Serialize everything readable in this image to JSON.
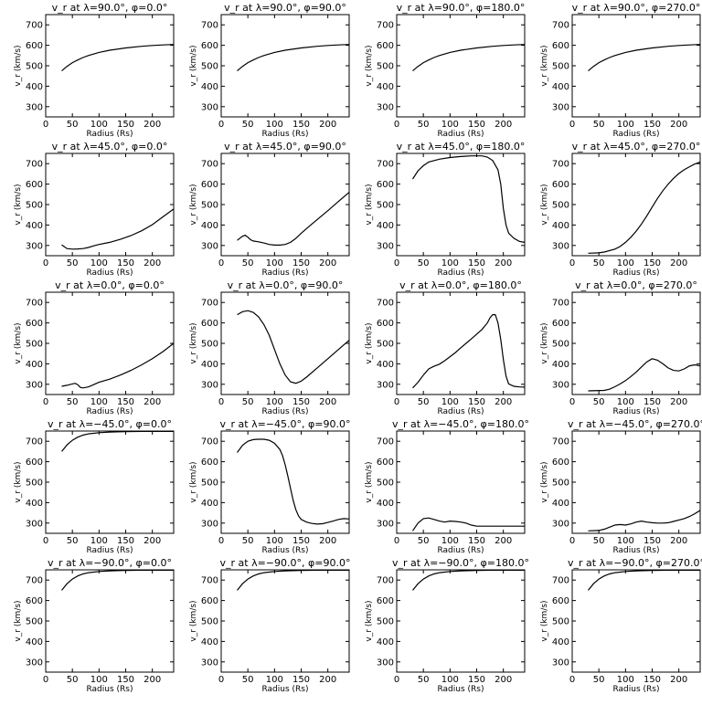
{
  "figure": {
    "panels": [
      {
        "title": "v_r at λ=90.0°, φ=0.0°"
      },
      {
        "title": "v_r at λ=90.0°, φ=90.0°"
      },
      {
        "title": "v_r at λ=90.0°, φ=180.0°"
      },
      {
        "title": "v_r at λ=90.0°, φ=270.0°"
      },
      {
        "title": "v_r at λ=45.0°, φ=0.0°"
      },
      {
        "title": "v_r at λ=45.0°, φ=90.0°"
      },
      {
        "title": "v_r at λ=45.0°, φ=180.0°"
      },
      {
        "title": "v_r at λ=45.0°, φ=270.0°"
      },
      {
        "title": "v_r at λ=0.0°, φ=0.0°"
      },
      {
        "title": "v_r at λ=0.0°, φ=90.0°"
      },
      {
        "title": "v_r at λ=0.0°, φ=180.0°"
      },
      {
        "title": "v_r at λ=0.0°, φ=270.0°"
      },
      {
        "title": "v_r at λ=−45.0°, φ=0.0°"
      },
      {
        "title": "v_r at λ=−45.0°, φ=90.0°"
      },
      {
        "title": "v_r at λ=−45.0°, φ=180.0°"
      },
      {
        "title": "v_r at λ=−45.0°, φ=270.0°"
      },
      {
        "title": "v_r at λ=−90.0°, φ=0.0°"
      },
      {
        "title": "v_r at λ=−90.0°, φ=90.0°"
      },
      {
        "title": "v_r at λ=−90.0°, φ=180.0°"
      },
      {
        "title": "v_r at λ=−90.0°, φ=270.0°"
      }
    ]
  },
  "chart_data": [
    {
      "type": "line",
      "title": "v_r at λ=90.0°, φ=0.0°",
      "xlabel": "Radius (Rs)",
      "ylabel": "v_r (km/s)",
      "xlim": [
        0,
        240
      ],
      "ylim": [
        250,
        750
      ],
      "xticks": [
        0,
        50,
        100,
        150,
        200
      ],
      "yticks": [
        300,
        400,
        500,
        600,
        700
      ],
      "x": [
        30,
        40,
        50,
        60,
        70,
        80,
        100,
        120,
        150,
        180,
        200,
        220,
        240
      ],
      "y": [
        475,
        497,
        515,
        528,
        540,
        550,
        565,
        576,
        587,
        595,
        599,
        602,
        604
      ]
    },
    {
      "type": "line",
      "title": "v_r at λ=90.0°, φ=90.0°",
      "xlabel": "Radius (Rs)",
      "ylabel": "v_r (km/s)",
      "xlim": [
        0,
        240
      ],
      "ylim": [
        250,
        750
      ],
      "xticks": [
        0,
        50,
        100,
        150,
        200
      ],
      "yticks": [
        300,
        400,
        500,
        600,
        700
      ],
      "x": [
        30,
        40,
        50,
        60,
        70,
        80,
        100,
        120,
        150,
        180,
        200,
        220,
        240
      ],
      "y": [
        475,
        497,
        515,
        528,
        540,
        550,
        565,
        576,
        587,
        595,
        599,
        602,
        604
      ]
    },
    {
      "type": "line",
      "title": "v_r at λ=90.0°, φ=180.0°",
      "xlabel": "Radius (Rs)",
      "ylabel": "v_r (km/s)",
      "xlim": [
        0,
        240
      ],
      "ylim": [
        250,
        750
      ],
      "xticks": [
        0,
        50,
        100,
        150,
        200
      ],
      "yticks": [
        300,
        400,
        500,
        600,
        700
      ],
      "x": [
        30,
        40,
        50,
        60,
        70,
        80,
        100,
        120,
        150,
        180,
        200,
        220,
        240
      ],
      "y": [
        475,
        497,
        515,
        528,
        540,
        550,
        565,
        576,
        587,
        595,
        599,
        602,
        604
      ]
    },
    {
      "type": "line",
      "title": "v_r at λ=90.0°, φ=270.0°",
      "xlabel": "Radius (Rs)",
      "ylabel": "v_r (km/s)",
      "xlim": [
        0,
        240
      ],
      "ylim": [
        250,
        750
      ],
      "xticks": [
        0,
        50,
        100,
        150,
        200
      ],
      "yticks": [
        300,
        400,
        500,
        600,
        700
      ],
      "x": [
        30,
        40,
        50,
        60,
        70,
        80,
        100,
        120,
        150,
        180,
        200,
        220,
        240
      ],
      "y": [
        475,
        497,
        515,
        528,
        540,
        550,
        565,
        576,
        587,
        595,
        599,
        602,
        604
      ]
    },
    {
      "type": "line",
      "title": "v_r at λ=45.0°, φ=0.0°",
      "xlabel": "Radius (Rs)",
      "ylabel": "v_r (km/s)",
      "xlim": [
        0,
        240
      ],
      "ylim": [
        250,
        750
      ],
      "xticks": [
        0,
        50,
        100,
        150,
        200
      ],
      "yticks": [
        300,
        400,
        500,
        600,
        700
      ],
      "x": [
        30,
        40,
        50,
        60,
        70,
        80,
        90,
        100,
        120,
        140,
        160,
        180,
        200,
        220,
        240
      ],
      "y": [
        303,
        285,
        282,
        283,
        285,
        290,
        298,
        305,
        315,
        330,
        348,
        372,
        402,
        440,
        478
      ]
    },
    {
      "type": "line",
      "title": "v_r at λ=45.0°, φ=90.0°",
      "xlabel": "Radius (Rs)",
      "ylabel": "v_r (km/s)",
      "xlim": [
        0,
        240
      ],
      "ylim": [
        250,
        750
      ],
      "xticks": [
        0,
        50,
        100,
        150,
        200
      ],
      "yticks": [
        300,
        400,
        500,
        600,
        700
      ],
      "x": [
        30,
        40,
        45,
        50,
        55,
        60,
        70,
        80,
        90,
        100,
        110,
        120,
        130,
        140,
        150,
        170,
        200,
        220,
        240
      ],
      "y": [
        325,
        345,
        350,
        340,
        328,
        322,
        318,
        312,
        305,
        302,
        302,
        305,
        315,
        335,
        360,
        405,
        470,
        515,
        560
      ]
    },
    {
      "type": "line",
      "title": "v_r at λ=45.0°, φ=180.0°",
      "xlabel": "Radius (Rs)",
      "ylabel": "v_r (km/s)",
      "xlim": [
        0,
        240
      ],
      "ylim": [
        250,
        750
      ],
      "xticks": [
        0,
        50,
        100,
        150,
        200
      ],
      "yticks": [
        300,
        400,
        500,
        600,
        700
      ],
      "x": [
        30,
        40,
        50,
        60,
        80,
        100,
        120,
        140,
        160,
        170,
        180,
        190,
        195,
        200,
        205,
        210,
        220,
        230,
        240
      ],
      "y": [
        625,
        665,
        690,
        708,
        722,
        730,
        735,
        738,
        738,
        732,
        715,
        670,
        600,
        480,
        400,
        360,
        335,
        320,
        315
      ]
    },
    {
      "type": "line",
      "title": "v_r at λ=45.0°, φ=270.0°",
      "xlabel": "Radius (Rs)",
      "ylabel": "v_r (km/s)",
      "xlim": [
        0,
        240
      ],
      "ylim": [
        250,
        750
      ],
      "xticks": [
        0,
        50,
        100,
        150,
        200
      ],
      "yticks": [
        300,
        400,
        500,
        600,
        700
      ],
      "x": [
        30,
        50,
        60,
        80,
        90,
        100,
        110,
        120,
        130,
        140,
        150,
        160,
        170,
        180,
        190,
        200,
        210,
        220,
        230,
        240
      ],
      "y": [
        262,
        264,
        268,
        282,
        295,
        315,
        340,
        370,
        405,
        445,
        488,
        530,
        568,
        600,
        628,
        652,
        670,
        685,
        698,
        708
      ]
    },
    {
      "type": "line",
      "title": "v_r at λ=0.0°, φ=0.0°",
      "xlabel": "Radius (Rs)",
      "ylabel": "v_r (km/s)",
      "xlim": [
        0,
        240
      ],
      "ylim": [
        250,
        750
      ],
      "xticks": [
        0,
        50,
        100,
        150,
        200
      ],
      "yticks": [
        300,
        400,
        500,
        600,
        700
      ],
      "x": [
        30,
        40,
        50,
        55,
        60,
        65,
        70,
        80,
        90,
        100,
        120,
        140,
        160,
        180,
        200,
        220,
        240
      ],
      "y": [
        290,
        295,
        302,
        305,
        298,
        285,
        282,
        287,
        298,
        310,
        325,
        345,
        368,
        395,
        425,
        460,
        500
      ]
    },
    {
      "type": "line",
      "title": "v_r at λ=0.0°, φ=90.0°",
      "xlabel": "Radius (Rs)",
      "ylabel": "v_r (km/s)",
      "xlim": [
        0,
        240
      ],
      "ylim": [
        250,
        750
      ],
      "xticks": [
        0,
        50,
        100,
        150,
        200
      ],
      "yticks": [
        300,
        400,
        500,
        600,
        700
      ],
      "x": [
        30,
        40,
        50,
        60,
        70,
        80,
        90,
        100,
        110,
        120,
        130,
        140,
        150,
        160,
        180,
        200,
        220,
        240
      ],
      "y": [
        640,
        655,
        660,
        652,
        630,
        592,
        540,
        470,
        400,
        345,
        312,
        305,
        315,
        335,
        380,
        425,
        470,
        515
      ]
    },
    {
      "type": "line",
      "title": "v_r at λ=0.0°, φ=180.0°",
      "xlabel": "Radius (Rs)",
      "ylabel": "v_r (km/s)",
      "xlim": [
        0,
        240
      ],
      "ylim": [
        250,
        750
      ],
      "xticks": [
        0,
        50,
        100,
        150,
        200
      ],
      "yticks": [
        300,
        400,
        500,
        600,
        700
      ],
      "x": [
        30,
        40,
        50,
        60,
        70,
        80,
        90,
        100,
        110,
        120,
        130,
        140,
        150,
        160,
        170,
        175,
        180,
        185,
        190,
        195,
        200,
        205,
        210,
        220,
        230,
        240
      ],
      "y": [
        282,
        310,
        345,
        375,
        388,
        398,
        415,
        435,
        455,
        478,
        500,
        522,
        545,
        568,
        600,
        625,
        640,
        640,
        600,
        520,
        420,
        340,
        302,
        290,
        287,
        286
      ]
    },
    {
      "type": "line",
      "title": "v_r at λ=0.0°, φ=270.0°",
      "xlabel": "Radius (Rs)",
      "ylabel": "v_r (km/s)",
      "xlim": [
        0,
        240
      ],
      "ylim": [
        250,
        750
      ],
      "xticks": [
        0,
        50,
        100,
        150,
        200
      ],
      "yticks": [
        300,
        400,
        500,
        600,
        700
      ],
      "x": [
        30,
        60,
        70,
        80,
        90,
        100,
        110,
        120,
        130,
        140,
        150,
        160,
        170,
        180,
        190,
        200,
        210,
        220,
        230,
        240
      ],
      "y": [
        268,
        270,
        276,
        288,
        302,
        318,
        338,
        360,
        385,
        410,
        425,
        418,
        400,
        380,
        368,
        365,
        375,
        390,
        395,
        390
      ]
    },
    {
      "type": "line",
      "title": "v_r at λ=−45.0°, φ=0.0°",
      "xlabel": "Radius (Rs)",
      "ylabel": "v_r (km/s)",
      "xlim": [
        0,
        240
      ],
      "ylim": [
        250,
        750
      ],
      "xticks": [
        0,
        50,
        100,
        150,
        200
      ],
      "yticks": [
        300,
        400,
        500,
        600,
        700
      ],
      "x": [
        30,
        40,
        50,
        60,
        70,
        80,
        100,
        120,
        150,
        180,
        200,
        220,
        240
      ],
      "y": [
        650,
        682,
        705,
        720,
        730,
        736,
        742,
        745,
        747,
        748,
        748,
        748,
        748
      ]
    },
    {
      "type": "line",
      "title": "v_r at λ=−45.0°, φ=90.0°",
      "xlabel": "Radius (Rs)",
      "ylabel": "v_r (km/s)",
      "xlim": [
        0,
        240
      ],
      "ylim": [
        250,
        750
      ],
      "xticks": [
        0,
        50,
        100,
        150,
        200
      ],
      "yticks": [
        300,
        400,
        500,
        600,
        700
      ],
      "x": [
        30,
        40,
        50,
        60,
        70,
        80,
        90,
        100,
        110,
        115,
        120,
        125,
        130,
        135,
        140,
        145,
        150,
        160,
        170,
        180,
        190,
        200,
        210,
        220,
        230,
        240
      ],
      "y": [
        645,
        680,
        700,
        708,
        710,
        710,
        705,
        690,
        660,
        630,
        585,
        530,
        470,
        410,
        365,
        335,
        318,
        305,
        298,
        295,
        297,
        303,
        310,
        318,
        322,
        320
      ]
    },
    {
      "type": "line",
      "title": "v_r at λ=−45.0°, φ=180.0°",
      "xlabel": "Radius (Rs)",
      "ylabel": "v_r (km/s)",
      "xlim": [
        0,
        240
      ],
      "ylim": [
        250,
        750
      ],
      "xticks": [
        0,
        50,
        100,
        150,
        200
      ],
      "yticks": [
        300,
        400,
        500,
        600,
        700
      ],
      "x": [
        30,
        40,
        50,
        60,
        70,
        80,
        90,
        100,
        110,
        120,
        130,
        140,
        150,
        160,
        170,
        180,
        200,
        220,
        240
      ],
      "y": [
        262,
        300,
        322,
        325,
        318,
        310,
        305,
        310,
        308,
        305,
        300,
        290,
        285,
        285,
        285,
        285,
        285,
        285,
        285
      ]
    },
    {
      "type": "line",
      "title": "v_r at λ=−45.0°, φ=270.0°",
      "xlabel": "Radius (Rs)",
      "ylabel": "v_r (km/s)",
      "xlim": [
        0,
        240
      ],
      "ylim": [
        250,
        750
      ],
      "xticks": [
        0,
        50,
        100,
        150,
        200
      ],
      "yticks": [
        300,
        400,
        500,
        600,
        700
      ],
      "x": [
        30,
        50,
        60,
        70,
        80,
        90,
        100,
        110,
        120,
        130,
        140,
        150,
        160,
        170,
        180,
        190,
        200,
        210,
        220,
        230,
        240
      ],
      "y": [
        262,
        264,
        270,
        280,
        290,
        293,
        290,
        296,
        305,
        310,
        305,
        302,
        300,
        300,
        302,
        308,
        315,
        322,
        332,
        346,
        362
      ]
    },
    {
      "type": "line",
      "title": "v_r at λ=−90.0°, φ=0.0°",
      "xlabel": "Radius (Rs)",
      "ylabel": "v_r (km/s)",
      "xlim": [
        0,
        240
      ],
      "ylim": [
        250,
        750
      ],
      "xticks": [
        0,
        50,
        100,
        150,
        200
      ],
      "yticks": [
        300,
        400,
        500,
        600,
        700
      ],
      "x": [
        30,
        40,
        50,
        60,
        70,
        80,
        100,
        120,
        150,
        180,
        200,
        220,
        240
      ],
      "y": [
        650,
        682,
        705,
        720,
        730,
        736,
        742,
        745,
        747,
        748,
        748,
        748,
        748
      ]
    },
    {
      "type": "line",
      "title": "v_r at λ=−90.0°, φ=90.0°",
      "xlabel": "Radius (Rs)",
      "ylabel": "v_r (km/s)",
      "xlim": [
        0,
        240
      ],
      "ylim": [
        250,
        750
      ],
      "xticks": [
        0,
        50,
        100,
        150,
        200
      ],
      "yticks": [
        300,
        400,
        500,
        600,
        700
      ],
      "x": [
        30,
        40,
        50,
        60,
        70,
        80,
        100,
        120,
        150,
        180,
        200,
        220,
        240
      ],
      "y": [
        650,
        682,
        705,
        720,
        730,
        736,
        742,
        745,
        747,
        748,
        748,
        748,
        748
      ]
    },
    {
      "type": "line",
      "title": "v_r at λ=−90.0°, φ=180.0°",
      "xlabel": "Radius (Rs)",
      "ylabel": "v_r (km/s)",
      "xlim": [
        0,
        240
      ],
      "ylim": [
        250,
        750
      ],
      "xticks": [
        0,
        50,
        100,
        150,
        200
      ],
      "yticks": [
        300,
        400,
        500,
        600,
        700
      ],
      "x": [
        30,
        40,
        50,
        60,
        70,
        80,
        100,
        120,
        150,
        180,
        200,
        220,
        240
      ],
      "y": [
        650,
        682,
        705,
        720,
        730,
        736,
        742,
        745,
        747,
        748,
        748,
        748,
        748
      ]
    },
    {
      "type": "line",
      "title": "v_r at λ=−90.0°, φ=270.0°",
      "xlabel": "Radius (Rs)",
      "ylabel": "v_r (km/s)",
      "xlim": [
        0,
        240
      ],
      "ylim": [
        250,
        750
      ],
      "xticks": [
        0,
        50,
        100,
        150,
        200
      ],
      "yticks": [
        300,
        400,
        500,
        600,
        700
      ],
      "x": [
        30,
        40,
        50,
        60,
        70,
        80,
        100,
        120,
        150,
        180,
        200,
        220,
        240
      ],
      "y": [
        650,
        682,
        705,
        720,
        730,
        736,
        742,
        745,
        747,
        748,
        748,
        748,
        748
      ]
    }
  ]
}
